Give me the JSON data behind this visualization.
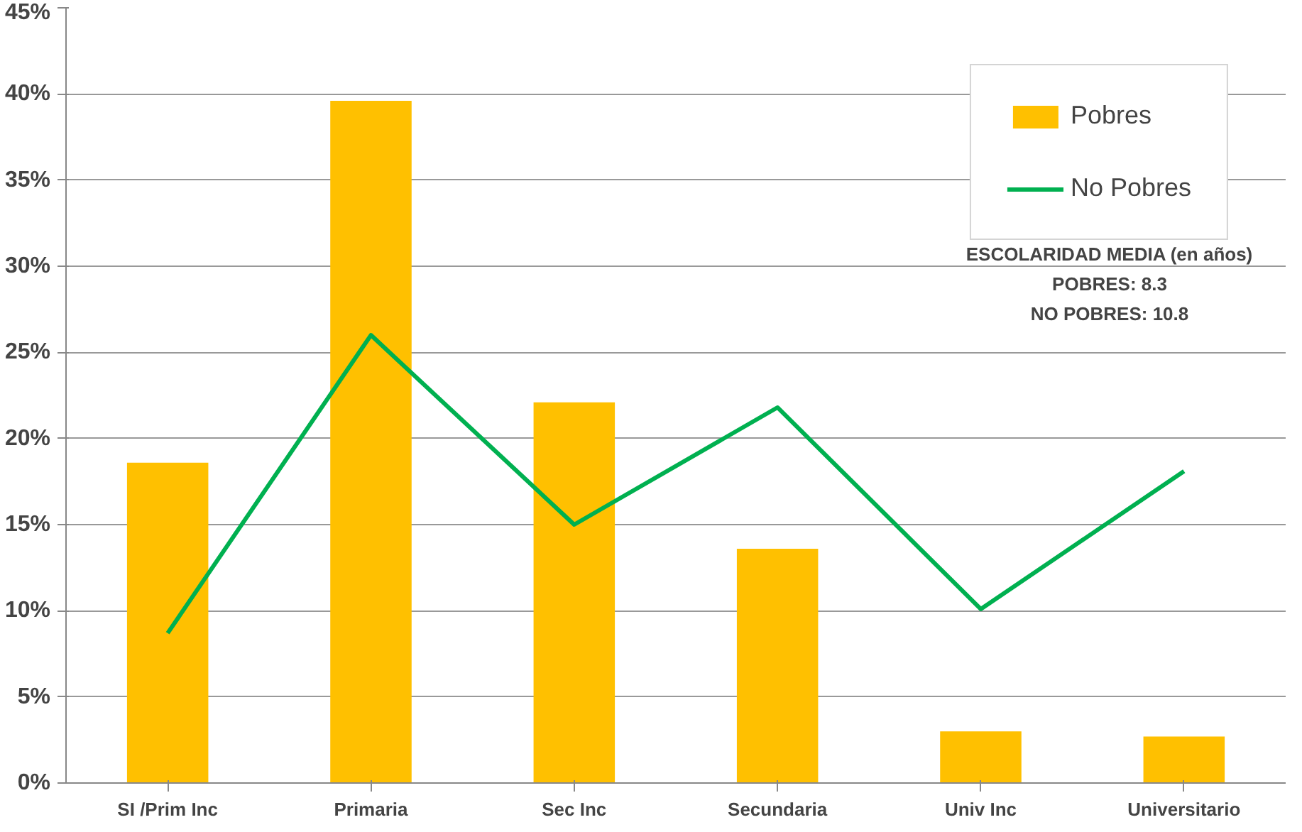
{
  "chart_data": {
    "type": "bar",
    "categories": [
      "SI /Prim Inc",
      "Primaria",
      "Sec Inc",
      "Secundaria",
      "Univ Inc",
      "Universitario"
    ],
    "series": [
      {
        "name": "Pobres",
        "color": "#ffc000",
        "values": [
          18.6,
          39.6,
          22.1,
          13.6,
          3.0,
          2.7
        ]
      },
      {
        "name": "No Pobres",
        "type": "line",
        "color": "#00b050",
        "values": [
          8.7,
          26.0,
          15.0,
          21.8,
          10.1,
          18.1
        ]
      }
    ],
    "ylim": [
      0,
      45
    ],
    "yticks": [
      {
        "value": 0,
        "label": "0%"
      },
      {
        "value": 5,
        "label": "5%"
      },
      {
        "value": 10,
        "label": "10%"
      },
      {
        "value": 15,
        "label": "15%"
      },
      {
        "value": 20,
        "label": "20%"
      },
      {
        "value": 25,
        "label": "25%"
      },
      {
        "value": 30,
        "label": "30%"
      },
      {
        "value": 35,
        "label": "35%"
      },
      {
        "value": 40,
        "label": "40%"
      },
      {
        "value": 45,
        "label": "45%"
      }
    ],
    "grid": "y",
    "legend": "top right",
    "annotations": [
      "ESCOLARIDAD MEDIA (en años)",
      "POBRES: 8.3",
      "NO POBRES: 10.8"
    ]
  }
}
